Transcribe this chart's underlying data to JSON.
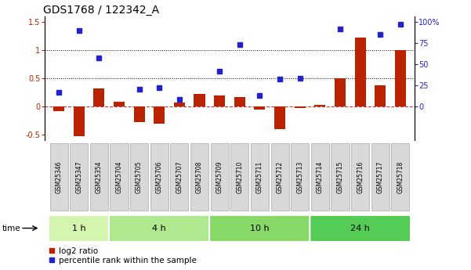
{
  "title": "GDS1768 / 122342_A",
  "samples": [
    "GSM25346",
    "GSM25347",
    "GSM25354",
    "GSM25704",
    "GSM25705",
    "GSM25706",
    "GSM25707",
    "GSM25708",
    "GSM25709",
    "GSM25710",
    "GSM25711",
    "GSM25712",
    "GSM25713",
    "GSM25714",
    "GSM25715",
    "GSM25716",
    "GSM25717",
    "GSM25718"
  ],
  "log2_ratio": [
    -0.08,
    -0.52,
    0.32,
    0.08,
    -0.28,
    -0.3,
    0.07,
    0.22,
    0.2,
    0.17,
    -0.05,
    -0.4,
    -0.02,
    0.03,
    0.5,
    1.22,
    0.38,
    1.0
  ],
  "percentile_rank": [
    17,
    90,
    57,
    null,
    20,
    22,
    8,
    null,
    42,
    73,
    13,
    32,
    33,
    null,
    92,
    null,
    85,
    97
  ],
  "time_groups": [
    {
      "label": "1 h",
      "start": 0,
      "end": 3,
      "color": "#d4f5b0"
    },
    {
      "label": "4 h",
      "start": 3,
      "end": 8,
      "color": "#b0e890"
    },
    {
      "label": "10 h",
      "start": 8,
      "end": 13,
      "color": "#88d868"
    },
    {
      "label": "24 h",
      "start": 13,
      "end": 18,
      "color": "#55cc55"
    }
  ],
  "bar_color": "#bb2200",
  "dot_color": "#2222cc",
  "ylim_left": [
    -0.6,
    1.6
  ],
  "yticks_left": [
    -0.5,
    0.0,
    0.5,
    1.0,
    1.5
  ],
  "yticks_right": [
    0,
    25,
    50,
    75,
    100
  ],
  "hline_values": [
    0.5,
    1.0
  ],
  "zero_line_color": "#cc3333",
  "bg_color": "#ffffff",
  "title_fontsize": 10,
  "axis_fontsize": 7,
  "legend_items": [
    "log2 ratio",
    "percentile rank within the sample"
  ],
  "legend_fontsize": 7.5
}
